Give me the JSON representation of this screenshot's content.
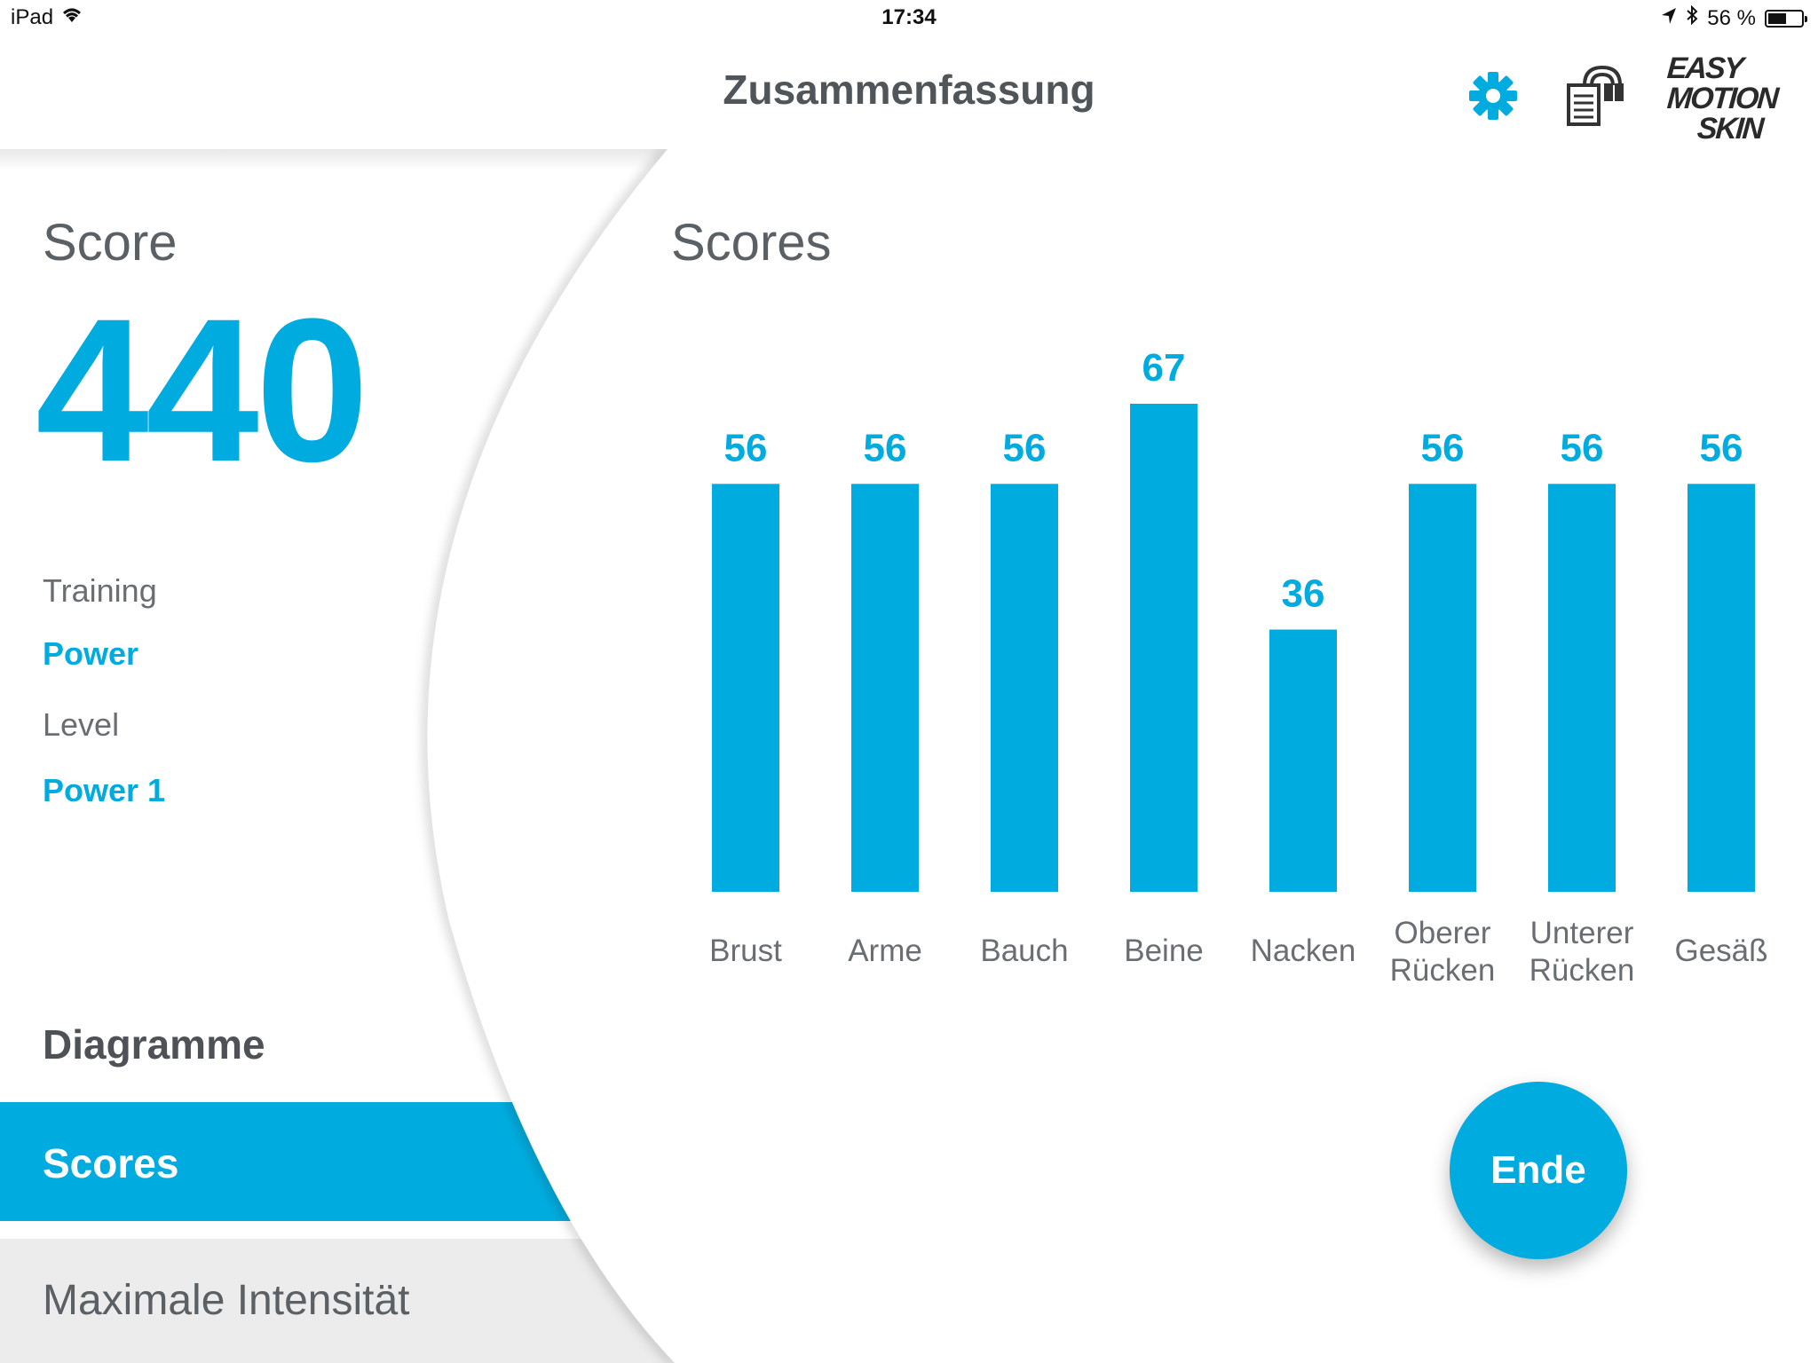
{
  "status_bar": {
    "device": "iPad",
    "time": "17:34",
    "battery": "56 %",
    "battery_level": 0.56,
    "icons": [
      "wifi-icon",
      "location-icon",
      "bluetooth-icon",
      "battery-icon"
    ]
  },
  "header": {
    "title": "Zusammenfassung",
    "icons": [
      "gear-icon",
      "device-icon"
    ],
    "logo_lines": [
      "EASY",
      "MOTION",
      "SKIN"
    ]
  },
  "summary": {
    "score_label": "Score",
    "score_value": "440",
    "training_label": "Training",
    "training_value": "Power",
    "level_label": "Level",
    "level_value": "Power 1"
  },
  "nav": {
    "section_title": "Diagramme",
    "items": [
      {
        "label": "Scores",
        "active": true
      },
      {
        "label": "Maximale Intensität",
        "active": false
      }
    ]
  },
  "main": {
    "title": "Scores"
  },
  "chart_data": {
    "type": "bar",
    "categories": [
      "Brust",
      "Arme",
      "Bauch",
      "Beine",
      "Nacken",
      "Oberer Rücken",
      "Unterer Rücken",
      "Gesäß"
    ],
    "values": [
      56,
      56,
      56,
      67,
      36,
      56,
      56,
      56
    ],
    "title": "Scores",
    "xlabel": "",
    "ylabel": "",
    "ylim": [
      0,
      67
    ],
    "grid": false,
    "color": "#00acdf",
    "data_labels": true
  },
  "actions": {
    "end_label": "Ende"
  },
  "colors": {
    "accent": "#00acdf",
    "text": "#555a5e",
    "inactive_nav_bg": "#ececec"
  }
}
